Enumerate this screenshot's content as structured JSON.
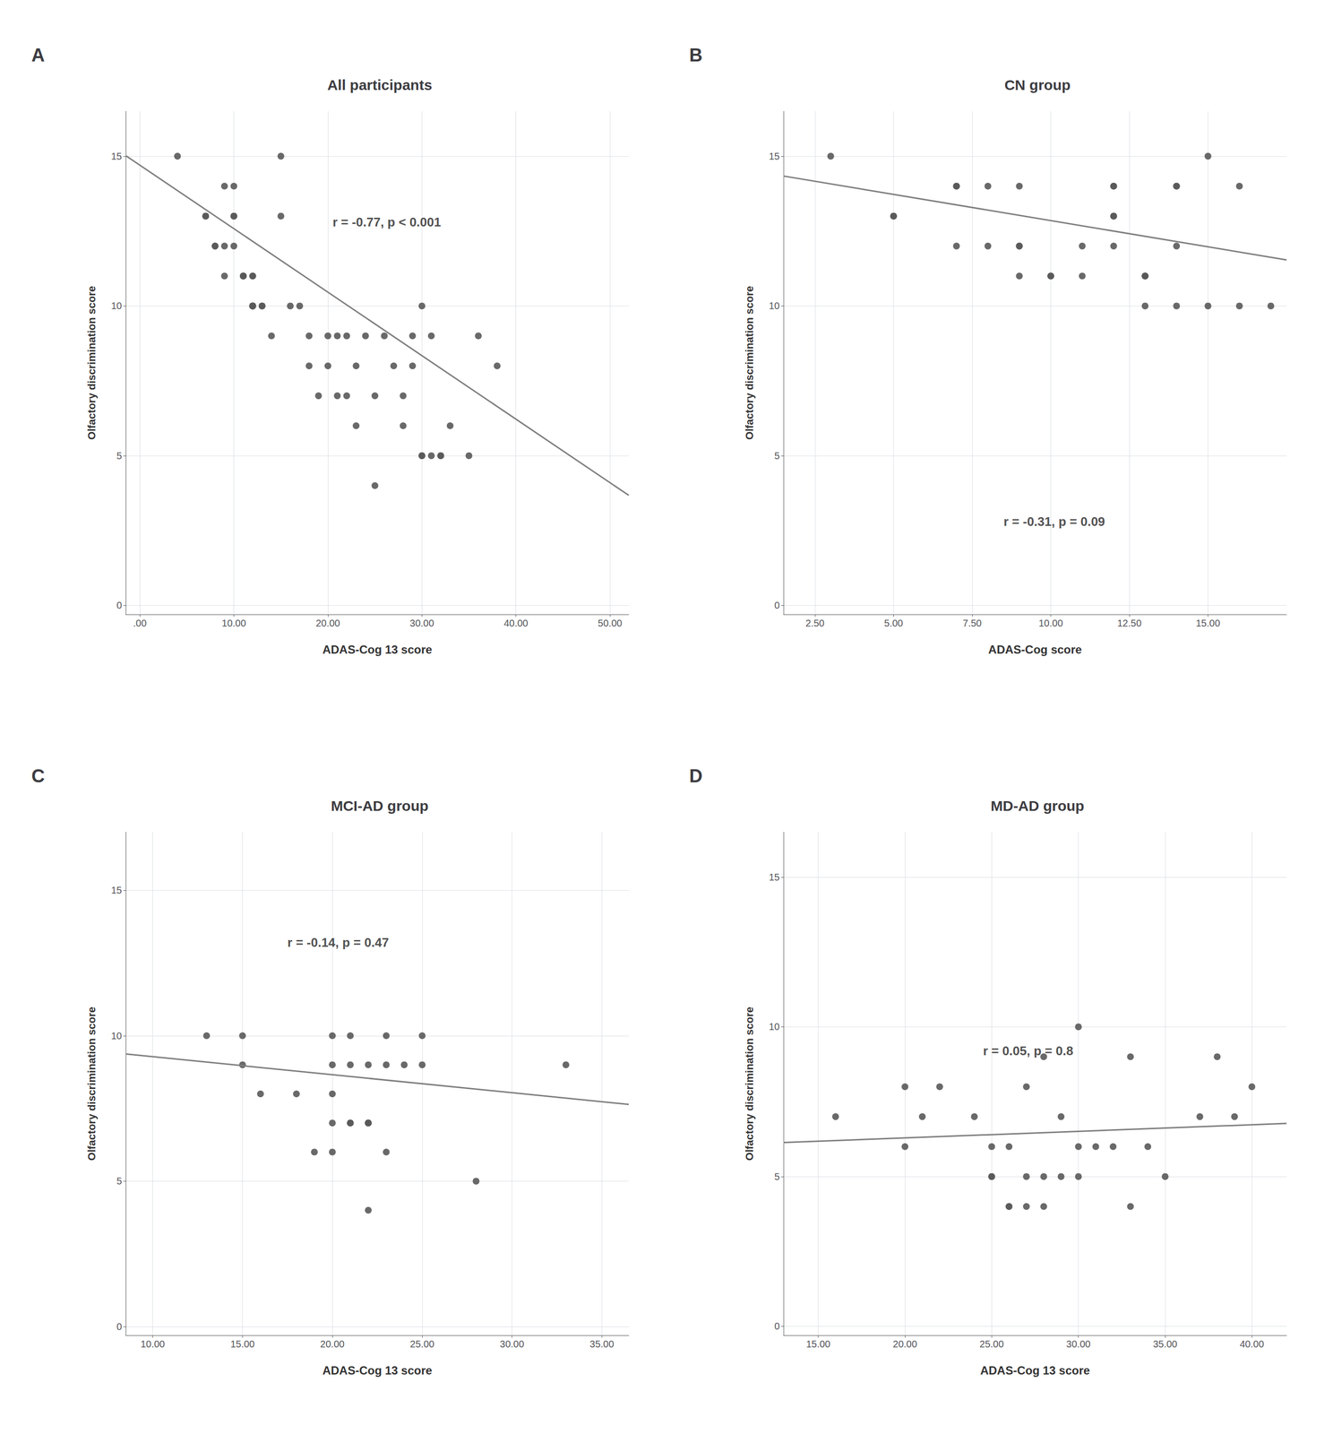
{
  "chart_data": [
    {
      "type": "scatter",
      "panel_label": "A",
      "title": "All participants",
      "xlabel": "ADAS-Cog 13 score",
      "ylabel": "Olfactory discrimination score",
      "annotations": [
        {
          "text": "r = -0.77, p < 0.001",
          "x": 20.5,
          "y": 12.8
        }
      ],
      "xlim": [
        -1.5,
        52
      ],
      "ylim": [
        -0.3,
        16.5
      ],
      "xticks": [
        {
          "value": 0.0,
          "label": ".00"
        },
        {
          "value": 10.0,
          "label": "10.00"
        },
        {
          "value": 20.0,
          "label": "20.00"
        },
        {
          "value": 30.0,
          "label": "30.00"
        },
        {
          "value": 40.0,
          "label": "40.00"
        },
        {
          "value": 50.0,
          "label": "50.00"
        }
      ],
      "yticks": [
        0,
        5,
        10,
        15
      ],
      "grid": true,
      "series": [
        {
          "type": "scatter",
          "color": "#595959",
          "x": [
            4,
            7,
            7,
            8,
            8,
            9,
            9,
            9,
            10,
            10,
            10,
            10,
            11,
            11,
            11,
            12,
            12,
            12,
            12,
            12,
            12,
            13,
            13,
            14,
            15,
            15,
            16,
            17,
            18,
            18,
            19,
            20,
            20,
            21,
            21,
            22,
            22,
            23,
            23,
            24,
            25,
            25,
            26,
            27,
            28,
            28,
            29,
            29,
            30,
            30,
            30,
            31,
            31,
            32,
            32,
            33,
            35,
            36,
            38
          ],
          "values": [
            15,
            13,
            13,
            12,
            12,
            12,
            11,
            14,
            14,
            13,
            13,
            12,
            11,
            11,
            11,
            11,
            11,
            10,
            10,
            10,
            10,
            10,
            10,
            9,
            15,
            13,
            10,
            10,
            9,
            8,
            7,
            9,
            8,
            9,
            7,
            9,
            7,
            8,
            6,
            9,
            7,
            4,
            9,
            8,
            7,
            6,
            9,
            8,
            10,
            5,
            5,
            9,
            5,
            5,
            5,
            6,
            5,
            9,
            8
          ]
        },
        {
          "type": "line",
          "color": "#7f7f7f",
          "x": [
            -1.5,
            52
          ],
          "values": [
            15.018,
            3.676
          ]
        }
      ]
    },
    {
      "type": "scatter",
      "panel_label": "B",
      "title": "CN group",
      "xlabel": "ADAS-Cog score",
      "ylabel": "Olfactory discrimination score",
      "annotations": [
        {
          "text": "r = -0.31, p = 0.09",
          "x": 8.5,
          "y": 2.8
        }
      ],
      "xlim": [
        1.5,
        17.5
      ],
      "ylim": [
        -0.3,
        16.5
      ],
      "xticks": [
        {
          "value": 2.5,
          "label": "2.50"
        },
        {
          "value": 5.0,
          "label": "5.00"
        },
        {
          "value": 7.5,
          "label": "7.50"
        },
        {
          "value": 10.0,
          "label": "10.00"
        },
        {
          "value": 12.5,
          "label": "12.50"
        },
        {
          "value": 15.0,
          "label": "15.00"
        }
      ],
      "yticks": [
        0,
        5,
        10,
        15
      ],
      "grid": true,
      "series": [
        {
          "type": "scatter",
          "color": "#595959",
          "x": [
            3,
            5,
            5,
            7,
            7,
            7,
            8,
            8,
            9,
            9,
            9,
            9,
            10,
            10,
            11,
            11,
            12,
            12,
            12,
            12,
            12,
            13,
            13,
            13,
            13,
            14,
            14,
            14,
            14,
            15,
            15,
            16,
            16,
            17
          ],
          "values": [
            15,
            13,
            13,
            14,
            14,
            12,
            14,
            12,
            14,
            12,
            11,
            12,
            11,
            11,
            12,
            11,
            13,
            13,
            14,
            14,
            12,
            11,
            11,
            11,
            10,
            12,
            10,
            14,
            14,
            15,
            10,
            10,
            14,
            10
          ]
        },
        {
          "type": "line",
          "color": "#7f7f7f",
          "x": [
            1.5,
            17.5
          ],
          "values": [
            14.3375,
            11.5375
          ]
        }
      ]
    },
    {
      "type": "scatter",
      "panel_label": "C",
      "title": "MCI-AD group",
      "xlabel": "ADAS-Cog 13 score",
      "ylabel": "Olfactory discrimination score",
      "annotations": [
        {
          "text": "r = -0.14, p = 0.47",
          "x": 17.5,
          "y": 13.2
        }
      ],
      "xlim": [
        8.5,
        36.5
      ],
      "ylim": [
        -0.3,
        17
      ],
      "xticks": [
        {
          "value": 10.0,
          "label": "10.00"
        },
        {
          "value": 15.0,
          "label": "15.00"
        },
        {
          "value": 20.0,
          "label": "20.00"
        },
        {
          "value": 25.0,
          "label": "25.00"
        },
        {
          "value": 30.0,
          "label": "30.00"
        },
        {
          "value": 35.0,
          "label": "35.00"
        }
      ],
      "yticks": [
        0,
        5,
        10,
        15
      ],
      "grid": true,
      "series": [
        {
          "type": "scatter",
          "color": "#595959",
          "x": [
            13,
            15,
            15,
            16,
            18,
            19,
            20,
            20,
            20,
            20,
            20,
            21,
            21,
            21,
            21,
            22,
            22,
            22,
            22,
            22,
            23,
            23,
            23,
            24,
            25,
            25,
            28,
            33
          ],
          "values": [
            10,
            10,
            9,
            8,
            8,
            6,
            10,
            9,
            8,
            7,
            6,
            10,
            9,
            7,
            7,
            9,
            7,
            7,
            7,
            4,
            10,
            9,
            6,
            9,
            9,
            10,
            5,
            9
          ]
        },
        {
          "type": "line",
          "color": "#7f7f7f",
          "x": [
            8.5,
            36.5
          ],
          "values": [
            9.373,
            7.637
          ]
        }
      ]
    },
    {
      "type": "scatter",
      "panel_label": "D",
      "title": "MD-AD group",
      "xlabel": "ADAS-Cog 13 score",
      "ylabel": "Olfactory discrimination score",
      "annotations": [
        {
          "text": "r = 0.05, p = 0.8",
          "x": 24.5,
          "y": 9.2
        }
      ],
      "xlim": [
        13,
        42
      ],
      "ylim": [
        -0.3,
        16.5
      ],
      "xticks": [
        {
          "value": 15.0,
          "label": "15.00"
        },
        {
          "value": 20.0,
          "label": "20.00"
        },
        {
          "value": 25.0,
          "label": "25.00"
        },
        {
          "value": 30.0,
          "label": "30.00"
        },
        {
          "value": 35.0,
          "label": "35.00"
        },
        {
          "value": 40.0,
          "label": "40.00"
        }
      ],
      "yticks": [
        0,
        5,
        10,
        15
      ],
      "grid": true,
      "series": [
        {
          "type": "scatter",
          "color": "#595959",
          "x": [
            16,
            20,
            20,
            21,
            22,
            24,
            25,
            25,
            25,
            26,
            26,
            26,
            27,
            27,
            27,
            28,
            28,
            28,
            29,
            29,
            30,
            30,
            30,
            31,
            32,
            33,
            33,
            34,
            35,
            37,
            38,
            39,
            40
          ],
          "values": [
            7,
            6,
            8,
            7,
            8,
            7,
            6,
            5,
            5,
            6,
            4,
            4,
            8,
            5,
            4,
            9,
            5,
            4,
            7,
            5,
            10,
            6,
            5,
            6,
            6,
            9,
            4,
            6,
            5,
            7,
            9,
            7,
            8
          ]
        },
        {
          "type": "line",
          "color": "#7f7f7f",
          "x": [
            13,
            42
          ],
          "values": [
            6.136,
            6.774
          ]
        }
      ]
    }
  ]
}
